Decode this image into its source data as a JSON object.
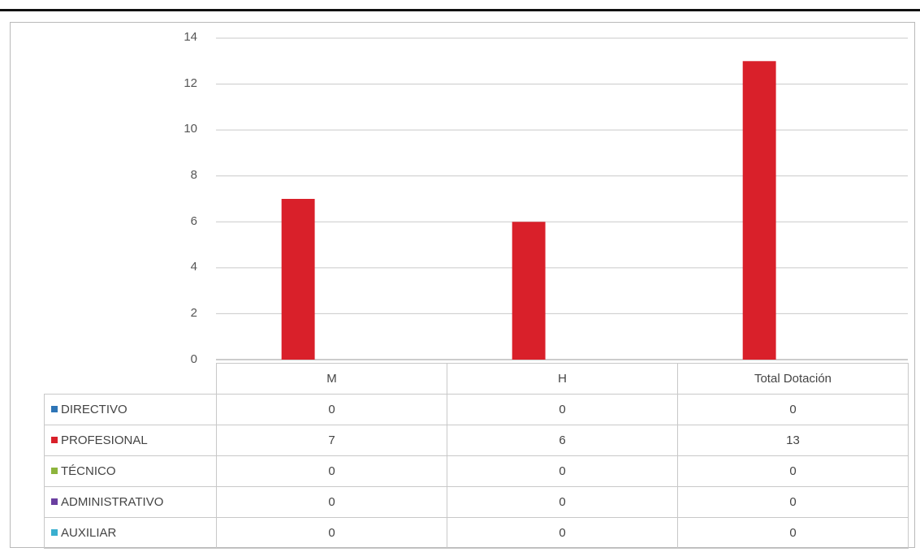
{
  "chart_data": {
    "type": "bar",
    "categories": [
      "M",
      "H",
      "Total Dotación"
    ],
    "series": [
      {
        "name": "DIRECTIVO",
        "color": "#2e75b6",
        "values": [
          0,
          0,
          0
        ]
      },
      {
        "name": "PROFESIONAL",
        "color": "#d9202a",
        "values": [
          7,
          6,
          13
        ]
      },
      {
        "name": "TÉCNICO",
        "color": "#8db43d",
        "values": [
          0,
          0,
          0
        ]
      },
      {
        "name": "ADMINISTRATIVO",
        "color": "#6a3fa0",
        "values": [
          0,
          0,
          0
        ]
      },
      {
        "name": "AUXILIAR",
        "color": "#3aafcf",
        "values": [
          0,
          0,
          0
        ]
      }
    ],
    "ylim": [
      0,
      14
    ],
    "yticks": [
      "0",
      "2",
      "4",
      "6",
      "8",
      "10",
      "12",
      "14"
    ],
    "grid": true,
    "legend": "data table with legend keys below the chart",
    "table": {
      "header": [
        "M",
        "H",
        "Total Dotación"
      ],
      "rows": [
        [
          "0",
          "0",
          "0"
        ],
        [
          "7",
          "6",
          "13"
        ],
        [
          "0",
          "0",
          "0"
        ],
        [
          "0",
          "0",
          "0"
        ],
        [
          "0",
          "0",
          "0"
        ]
      ]
    }
  }
}
